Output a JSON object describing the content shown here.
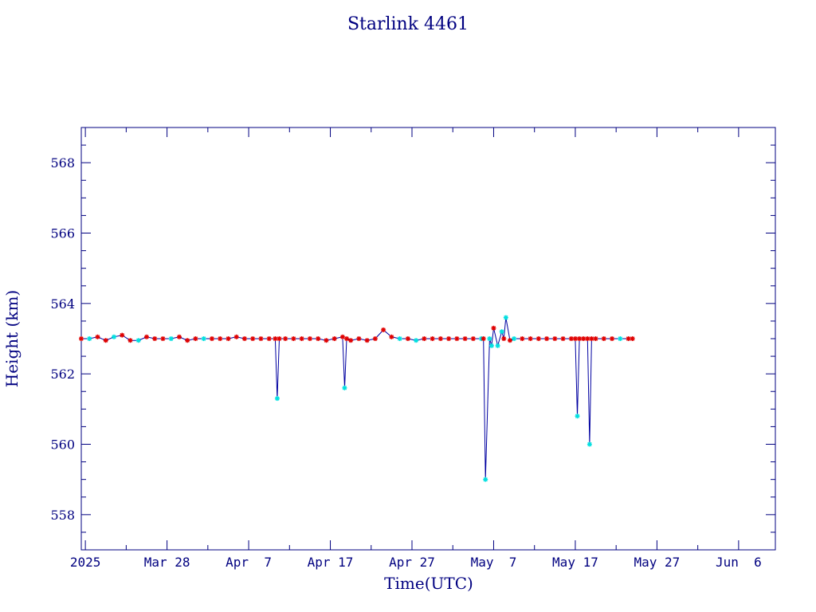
{
  "chart_data": {
    "type": "line",
    "title": "Starlink 4461",
    "xlabel": "Time(UTC)",
    "ylabel": "Height (km)",
    "x_type": "date",
    "xlim": [
      "2025-03-17T12:00",
      "2025-06-10T12:00"
    ],
    "ylim": [
      557,
      569
    ],
    "y_ticks": [
      558,
      560,
      562,
      564,
      566,
      568
    ],
    "x_ticks": [
      {
        "date": "2025-03-18",
        "label": "2025"
      },
      {
        "date": "2025-03-28",
        "label": "Mar 28"
      },
      {
        "date": "2025-04-07",
        "label": "Apr  7"
      },
      {
        "date": "2025-04-17",
        "label": "Apr 17"
      },
      {
        "date": "2025-04-27",
        "label": "Apr 27"
      },
      {
        "date": "2025-05-07",
        "label": "May  7"
      },
      {
        "date": "2025-05-17",
        "label": "May 17"
      },
      {
        "date": "2025-05-27",
        "label": "May 27"
      },
      {
        "date": "2025-06-06",
        "label": "Jun  6"
      }
    ],
    "grid": false,
    "legend": "none",
    "colors": {
      "line": "#0000a0",
      "frame": "#000080",
      "text": "#000080",
      "marker_red": "#e00000",
      "marker_cyan": "#00e0e0"
    },
    "series": [
      {
        "line_color": "#0000a0",
        "x": [
          "2025-03-17T12:00",
          "2025-03-18T12:00",
          "2025-03-19T12:00",
          "2025-03-20T12:00",
          "2025-03-21T12:00",
          "2025-03-22T12:00",
          "2025-03-23T12:00",
          "2025-03-24T12:00",
          "2025-03-25T12:00",
          "2025-03-26T12:00",
          "2025-03-27T12:00",
          "2025-03-28T12:00",
          "2025-03-29T12:00",
          "2025-03-30T12:00",
          "2025-03-31T12:00",
          "2025-04-01T12:00",
          "2025-04-02T12:00",
          "2025-04-03T12:00",
          "2025-04-04T12:00",
          "2025-04-05T12:00",
          "2025-04-06T12:00",
          "2025-04-07T12:00",
          "2025-04-08T12:00",
          "2025-04-09T12:00",
          "2025-04-10T06:00",
          "2025-04-10T12:00",
          "2025-04-10T18:00",
          "2025-04-11T12:00",
          "2025-04-12T12:00",
          "2025-04-13T12:00",
          "2025-04-14T12:00",
          "2025-04-15T12:00",
          "2025-04-16T12:00",
          "2025-04-17T12:00",
          "2025-04-18T12:00",
          "2025-04-18T18:00",
          "2025-04-19T00:00",
          "2025-04-19T12:00",
          "2025-04-20T12:00",
          "2025-04-21T12:00",
          "2025-04-22T12:00",
          "2025-04-23T12:00",
          "2025-04-24T12:00",
          "2025-04-25T12:00",
          "2025-04-26T12:00",
          "2025-04-27T12:00",
          "2025-04-28T12:00",
          "2025-04-29T12:00",
          "2025-04-30T12:00",
          "2025-05-01T12:00",
          "2025-05-02T12:00",
          "2025-05-03T12:00",
          "2025-05-04T12:00",
          "2025-05-05T12:00",
          "2025-05-05T18:00",
          "2025-05-06T00:00",
          "2025-05-06T12:00",
          "2025-05-06T18:00",
          "2025-05-07T00:00",
          "2025-05-07T12:00",
          "2025-05-08T00:00",
          "2025-05-08T06:00",
          "2025-05-08T12:00",
          "2025-05-09T00:00",
          "2025-05-09T12:00",
          "2025-05-10T12:00",
          "2025-05-11T12:00",
          "2025-05-12T12:00",
          "2025-05-13T12:00",
          "2025-05-14T12:00",
          "2025-05-15T12:00",
          "2025-05-16T12:00",
          "2025-05-17T00:00",
          "2025-05-17T06:00",
          "2025-05-17T12:00",
          "2025-05-18T00:00",
          "2025-05-18T12:00",
          "2025-05-18T18:00",
          "2025-05-19T00:00",
          "2025-05-19T12:00",
          "2025-05-20T12:00",
          "2025-05-21T12:00",
          "2025-05-22T12:00",
          "2025-05-23T12:00",
          "2025-05-24T00:00"
        ],
        "y": [
          563.0,
          563.0,
          563.05,
          562.95,
          563.05,
          563.1,
          562.95,
          562.95,
          563.05,
          563.0,
          563.0,
          563.0,
          563.05,
          562.95,
          563.0,
          563.0,
          563.0,
          563.0,
          563.0,
          563.05,
          563.0,
          563.0,
          563.0,
          563.0,
          563.0,
          561.3,
          563.0,
          563.0,
          563.0,
          563.0,
          563.0,
          563.0,
          562.95,
          563.0,
          563.05,
          561.6,
          563.0,
          562.95,
          563.0,
          562.95,
          563.0,
          563.25,
          563.05,
          563.0,
          563.0,
          562.95,
          563.0,
          563.0,
          563.0,
          563.0,
          563.0,
          563.0,
          563.0,
          563.0,
          563.0,
          559.0,
          563.0,
          562.8,
          563.3,
          562.8,
          563.2,
          563.0,
          563.6,
          562.95,
          563.0,
          563.0,
          563.0,
          563.0,
          563.0,
          563.0,
          563.0,
          563.0,
          563.0,
          560.8,
          563.0,
          563.0,
          563.0,
          560.0,
          563.0,
          563.0,
          563.0,
          563.0,
          563.0,
          563.0,
          563.0
        ],
        "marker_colors": [
          "red",
          "cyan",
          "red",
          "red",
          "cyan",
          "red",
          "red",
          "cyan",
          "red",
          "red",
          "red",
          "cyan",
          "red",
          "red",
          "red",
          "cyan",
          "red",
          "red",
          "red",
          "red",
          "red",
          "red",
          "red",
          "red",
          "red",
          "cyan",
          "red",
          "red",
          "red",
          "red",
          "red",
          "red",
          "red",
          "red",
          "red",
          "cyan",
          "red",
          "red",
          "red",
          "red",
          "red",
          "red",
          "red",
          "cyan",
          "red",
          "cyan",
          "red",
          "red",
          "red",
          "red",
          "red",
          "red",
          "red",
          "cyan",
          "red",
          "cyan",
          "cyan",
          "cyan",
          "red",
          "cyan",
          "cyan",
          "red",
          "cyan",
          "red",
          "cyan",
          "red",
          "red",
          "red",
          "red",
          "red",
          "red",
          "red",
          "red",
          "cyan",
          "red",
          "red",
          "red",
          "cyan",
          "red",
          "red",
          "red",
          "red",
          "cyan",
          "red",
          "red"
        ]
      }
    ]
  }
}
